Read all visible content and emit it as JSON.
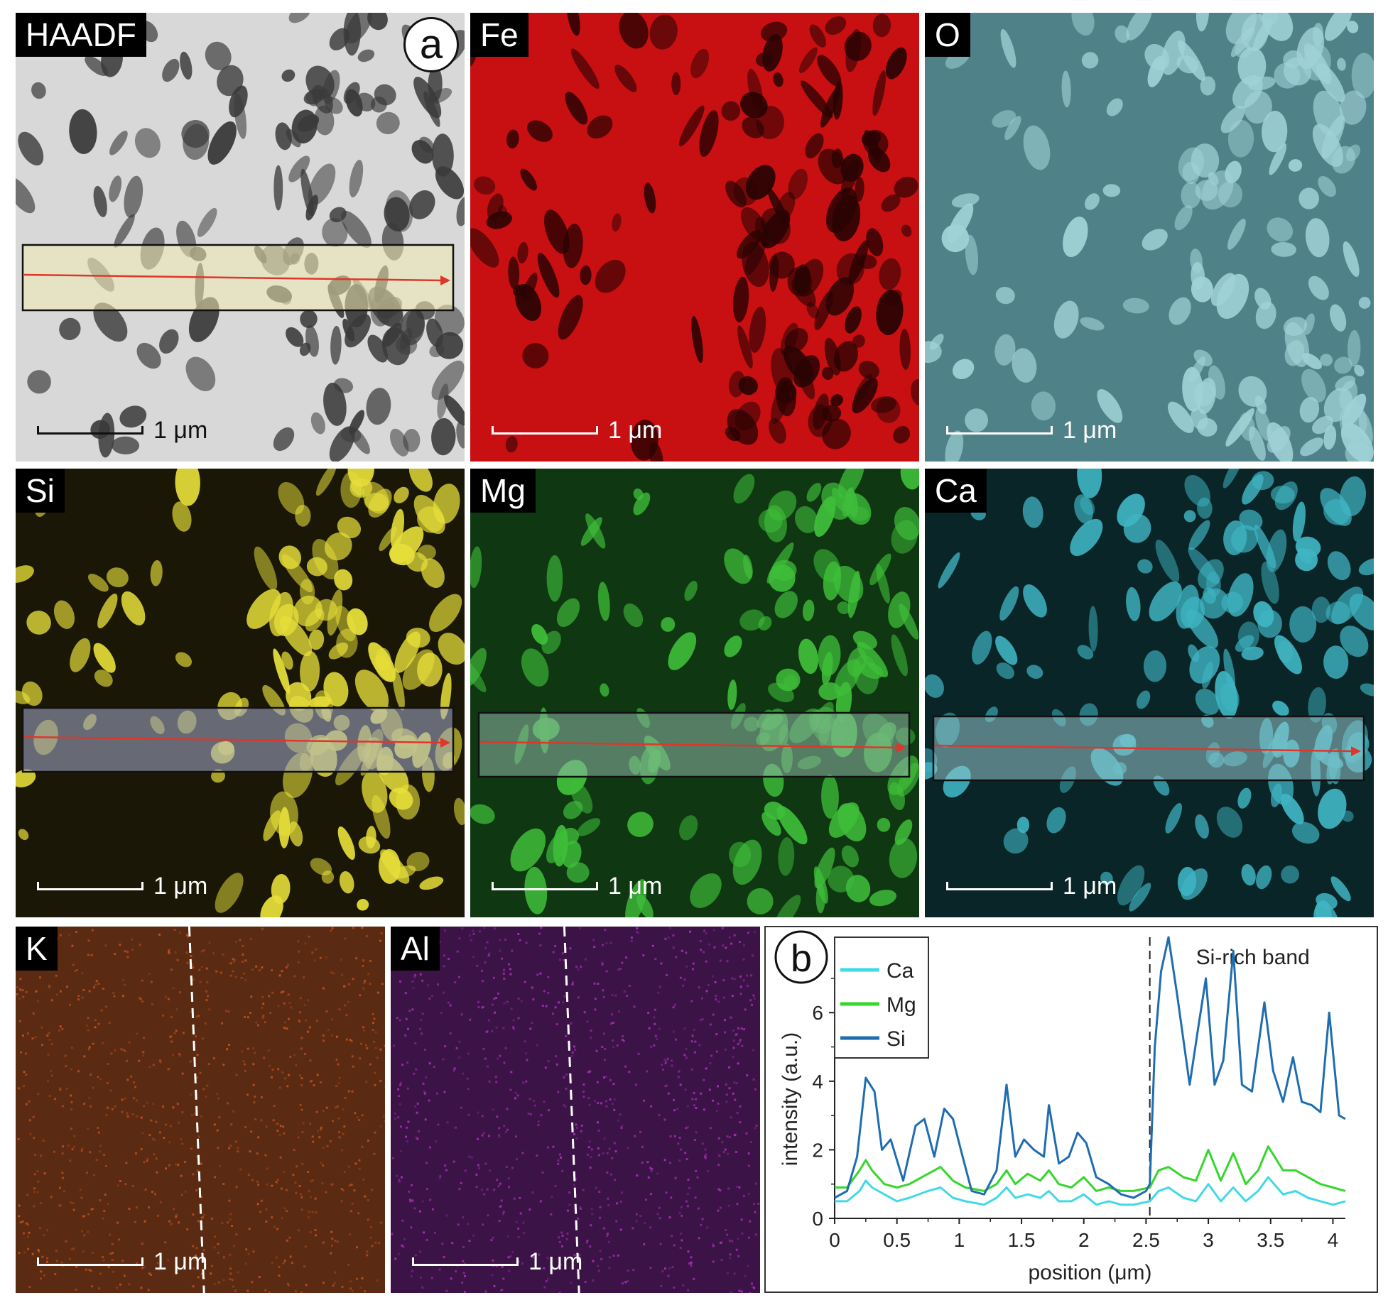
{
  "figure": {
    "panels": [
      {
        "id": "haadf",
        "label": "HAADF",
        "scale": "1 μm",
        "bg": "#d8d8d8",
        "spot": "#3a3a3a",
        "text": "#111111",
        "box": "#f0ecb4"
      },
      {
        "id": "fe",
        "label": "Fe",
        "scale": "1 μm",
        "bg": "#c80f12",
        "spot": "#2a0303",
        "text": "#ffffff",
        "box": null
      },
      {
        "id": "o",
        "label": "O",
        "scale": "1 μm",
        "bg": "#4f8288",
        "spot": "#9fd2d6",
        "text": "#ffffff",
        "box": null
      },
      {
        "id": "si",
        "label": "Si",
        "scale": "1 μm",
        "bg": "#1a1706",
        "spot": "#e6de3a",
        "text": "#ffffff",
        "box": "#a7aed0"
      },
      {
        "id": "mg",
        "label": "Mg",
        "scale": "1 μm",
        "bg": "#0f3812",
        "spot": "#3fbe3a",
        "text": "#ffffff",
        "box": "#8fb7a8"
      },
      {
        "id": "ca",
        "label": "Ca",
        "scale": "1 μm",
        "bg": "#092528",
        "spot": "#3fb4c2",
        "text": "#ffffff",
        "box": "#93c7cc"
      },
      {
        "id": "k",
        "label": "K",
        "scale": "1 μm",
        "bg": "#5a2a12",
        "spot": "#c7541e",
        "text": "#ffffff",
        "box": null
      },
      {
        "id": "al",
        "label": "Al",
        "scale": "1 μm",
        "bg": "#3b1346",
        "spot": "#b22fc2",
        "text": "#ffffff",
        "box": null
      }
    ],
    "panel_a_letter": "a",
    "panel_b_letter": "b"
  },
  "chart_data": {
    "type": "line",
    "xlabel": "position (μm)",
    "ylabel": "intensity (a.u.)",
    "xlim": [
      0,
      4.1
    ],
    "ylim": [
      0,
      8.2
    ],
    "xticks": [
      "0",
      "0.5",
      "1",
      "1.5",
      "2",
      "2.5",
      "3",
      "3.5",
      "4"
    ],
    "yticks": [
      "0",
      "2",
      "4",
      "6"
    ],
    "annotation": "Si-rich band",
    "boundary_x": 2.53,
    "series": [
      {
        "name": "Ca",
        "color": "#41d9e6",
        "x": [
          0,
          0.1,
          0.2,
          0.25,
          0.3,
          0.4,
          0.5,
          0.6,
          0.75,
          0.85,
          0.95,
          1.05,
          1.2,
          1.3,
          1.38,
          1.45,
          1.55,
          1.65,
          1.72,
          1.8,
          1.9,
          2.0,
          2.1,
          2.2,
          2.3,
          2.4,
          2.53,
          2.6,
          2.68,
          2.8,
          2.9,
          3.0,
          3.1,
          3.2,
          3.3,
          3.4,
          3.48,
          3.6,
          3.7,
          3.8,
          3.9,
          4.0,
          4.1
        ],
        "values": [
          0.5,
          0.5,
          0.8,
          1.1,
          0.9,
          0.7,
          0.5,
          0.6,
          0.8,
          0.9,
          0.6,
          0.5,
          0.4,
          0.6,
          0.9,
          0.6,
          0.7,
          0.6,
          0.8,
          0.5,
          0.5,
          0.7,
          0.4,
          0.5,
          0.4,
          0.4,
          0.5,
          0.8,
          0.9,
          0.6,
          0.5,
          1.0,
          0.5,
          0.9,
          0.5,
          0.8,
          1.2,
          0.7,
          0.8,
          0.6,
          0.5,
          0.4,
          0.5
        ]
      },
      {
        "name": "Mg",
        "color": "#35d72c",
        "x": [
          0,
          0.1,
          0.2,
          0.25,
          0.3,
          0.4,
          0.5,
          0.6,
          0.75,
          0.85,
          0.95,
          1.05,
          1.2,
          1.3,
          1.38,
          1.45,
          1.55,
          1.65,
          1.72,
          1.8,
          1.9,
          2.0,
          2.1,
          2.2,
          2.3,
          2.4,
          2.53,
          2.6,
          2.68,
          2.8,
          2.9,
          3.0,
          3.1,
          3.2,
          3.3,
          3.4,
          3.48,
          3.6,
          3.7,
          3.8,
          3.9,
          4.0,
          4.1
        ],
        "values": [
          0.9,
          0.9,
          1.4,
          1.7,
          1.4,
          1.0,
          0.9,
          1.0,
          1.3,
          1.5,
          1.1,
          0.9,
          0.8,
          1.0,
          1.4,
          1.0,
          1.3,
          1.1,
          1.4,
          1.0,
          0.9,
          1.2,
          0.8,
          0.9,
          0.8,
          0.8,
          0.9,
          1.4,
          1.5,
          1.2,
          1.1,
          2.0,
          1.1,
          1.9,
          1.0,
          1.4,
          2.1,
          1.4,
          1.4,
          1.2,
          1.0,
          0.9,
          0.8
        ]
      },
      {
        "name": "Si",
        "color": "#1f6db1",
        "x": [
          0,
          0.1,
          0.18,
          0.25,
          0.32,
          0.38,
          0.45,
          0.55,
          0.65,
          0.72,
          0.8,
          0.88,
          0.95,
          1.02,
          1.1,
          1.2,
          1.3,
          1.38,
          1.45,
          1.52,
          1.6,
          1.68,
          1.72,
          1.8,
          1.88,
          1.95,
          2.02,
          2.1,
          2.2,
          2.3,
          2.4,
          2.5,
          2.53,
          2.57,
          2.62,
          2.68,
          2.75,
          2.85,
          2.92,
          2.98,
          3.05,
          3.12,
          3.2,
          3.27,
          3.35,
          3.45,
          3.52,
          3.6,
          3.68,
          3.75,
          3.83,
          3.9,
          3.97,
          4.05,
          4.1
        ],
        "values": [
          0.6,
          0.8,
          1.8,
          4.1,
          3.7,
          2.0,
          2.3,
          1.1,
          2.7,
          2.9,
          1.8,
          3.2,
          2.9,
          1.9,
          0.8,
          0.7,
          1.4,
          3.9,
          1.8,
          2.3,
          2.0,
          1.8,
          3.3,
          1.6,
          1.8,
          2.5,
          2.2,
          1.2,
          1.0,
          0.7,
          0.6,
          0.8,
          1.0,
          5.0,
          7.2,
          8.2,
          6.5,
          3.9,
          5.6,
          7.0,
          3.9,
          4.6,
          7.8,
          3.9,
          3.7,
          6.3,
          4.3,
          3.4,
          4.7,
          3.4,
          3.3,
          3.1,
          6.0,
          3.0,
          2.9
        ]
      }
    ]
  }
}
